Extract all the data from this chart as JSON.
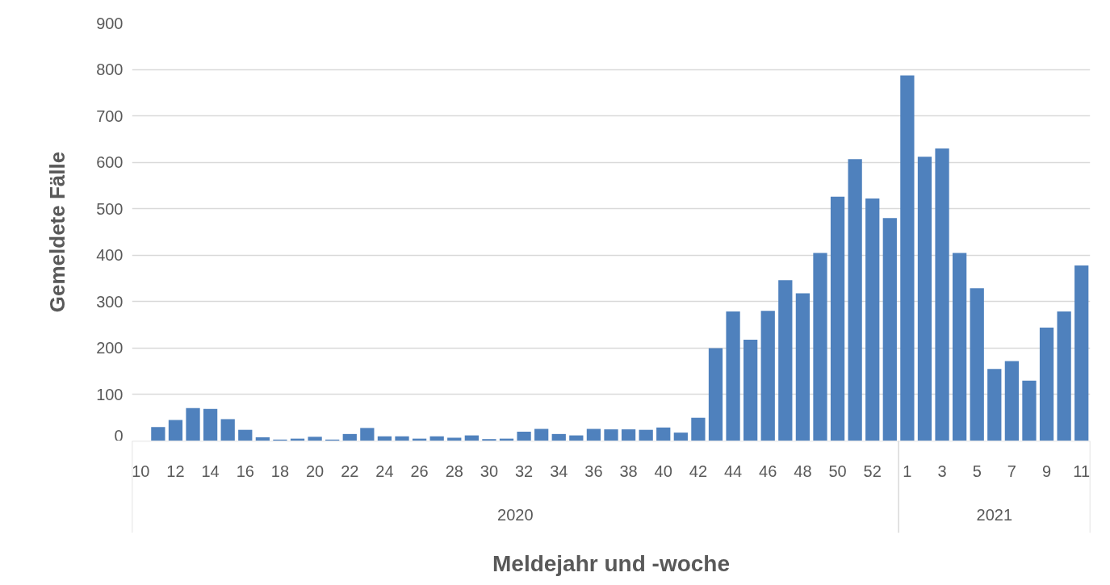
{
  "chart_data": {
    "type": "bar",
    "xlabel": "Meldejahr und -woche",
    "ylabel": "Gemeldete Fälle",
    "categories": [
      "10",
      null,
      "12",
      null,
      "14",
      null,
      "16",
      null,
      "18",
      null,
      "20",
      null,
      "22",
      null,
      "24",
      null,
      "26",
      null,
      "28",
      null,
      "30",
      null,
      "32",
      null,
      "34",
      null,
      "36",
      null,
      "38",
      null,
      "40",
      null,
      "42",
      null,
      "44",
      null,
      "46",
      null,
      "48",
      null,
      "50",
      null,
      "52",
      null,
      "1",
      null,
      "3",
      null,
      "5",
      null,
      "7",
      null,
      "9",
      null,
      "11"
    ],
    "values": [
      0,
      30,
      45,
      71,
      69,
      47,
      24,
      8,
      3,
      5,
      9,
      3,
      15,
      28,
      10,
      10,
      5,
      10,
      7,
      12,
      4,
      5,
      20,
      26,
      15,
      12,
      26,
      25,
      25,
      24,
      29,
      18,
      50,
      200,
      279,
      218,
      280,
      346,
      318,
      405,
      526,
      607,
      522,
      480,
      787,
      612,
      630,
      405,
      329,
      155,
      172,
      130,
      244,
      279,
      378
    ],
    "color": "#4f81bd",
    "ylim": [
      0,
      900
    ],
    "yticks": [
      0,
      100,
      200,
      300,
      400,
      500,
      600,
      700,
      800,
      900
    ],
    "grid": "y",
    "annotations": [
      "2020",
      "2021"
    ]
  }
}
